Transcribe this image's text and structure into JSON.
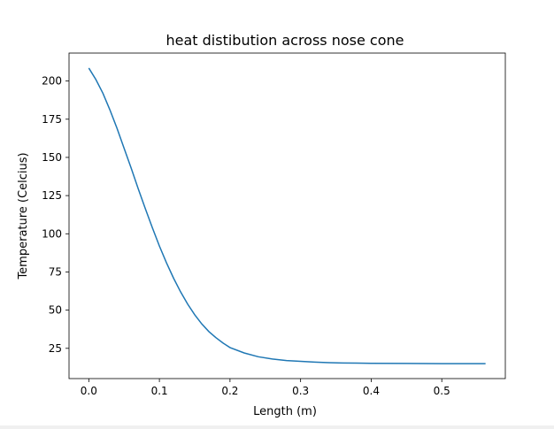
{
  "chart_data": {
    "type": "line",
    "title": "heat distibution across nose cone",
    "xlabel": "Length (m)",
    "ylabel": "Temperature (Celcius)",
    "xlim": [
      -0.028,
      0.59
    ],
    "ylim": [
      5.2,
      218.3
    ],
    "xticks": [
      0.0,
      0.1,
      0.2,
      0.3,
      0.4,
      0.5
    ],
    "xtick_labels": [
      "0.0",
      "0.1",
      "0.2",
      "0.3",
      "0.4",
      "0.5"
    ],
    "yticks": [
      25,
      50,
      75,
      100,
      125,
      150,
      175,
      200
    ],
    "ytick_labels": [
      "25",
      "50",
      "75",
      "100",
      "125",
      "150",
      "175",
      "200"
    ],
    "grid": false,
    "legend": "none",
    "series": [
      {
        "color": "#1f77b4",
        "x": [
          0.0,
          0.01,
          0.02,
          0.03,
          0.04,
          0.05,
          0.06,
          0.07,
          0.08,
          0.09,
          0.1,
          0.11,
          0.12,
          0.13,
          0.14,
          0.15,
          0.16,
          0.17,
          0.18,
          0.19,
          0.2,
          0.22,
          0.24,
          0.26,
          0.28,
          0.3,
          0.32,
          0.34,
          0.36,
          0.38,
          0.4,
          0.45,
          0.5,
          0.562
        ],
        "y": [
          208.5,
          201.0,
          192.0,
          181.0,
          169.0,
          156.0,
          143.0,
          129.5,
          116.5,
          104.0,
          92.0,
          81.0,
          71.0,
          62.0,
          54.0,
          47.0,
          41.0,
          36.0,
          32.0,
          28.5,
          25.5,
          22.0,
          19.5,
          18.0,
          17.0,
          16.5,
          16.0,
          15.6,
          15.4,
          15.3,
          15.2,
          15.1,
          15.0,
          15.0
        ]
      }
    ]
  }
}
